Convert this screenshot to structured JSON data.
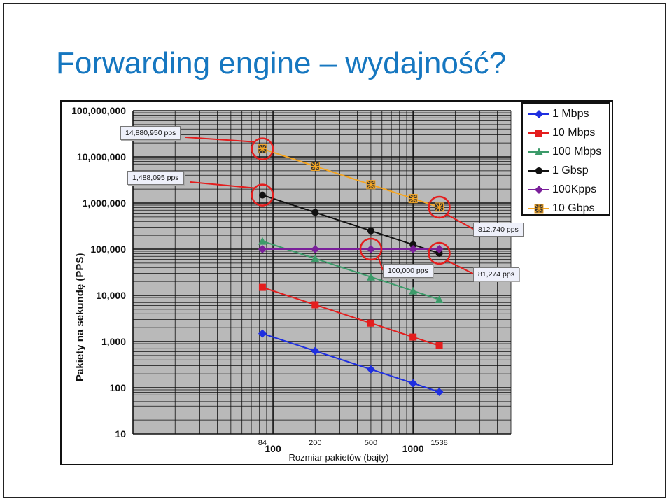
{
  "slide": {
    "title": "Forwarding engine – wydajność?"
  },
  "chart_data": {
    "type": "line",
    "xlabel": "Rozmiar pakietów (bajty)",
    "ylabel": "Pakiety na sekundę (PPS)",
    "x_scale": "log",
    "y_scale": "log",
    "xlim": [
      10,
      5000
    ],
    "ylim": [
      10,
      100000000
    ],
    "y_ticks": [
      10,
      100,
      1000,
      10000,
      100000,
      1000000,
      10000000,
      100000000
    ],
    "y_tick_labels": [
      "10",
      "100",
      "1,000",
      "10,000",
      "100,000",
      "1,000,000",
      "10,000,000",
      "100,000,000"
    ],
    "x_ticks": [
      100,
      1000
    ],
    "x_tick_labels": [
      "100",
      "1000"
    ],
    "x_packet_sizes": [
      84,
      200,
      500,
      1000,
      1538
    ],
    "x_packet_labels": [
      "84",
      "200",
      "500",
      "",
      "1538"
    ],
    "grid": true,
    "legend_position": "top-right",
    "series": [
      {
        "name": "1 Mbps",
        "color": "#1f2fe0",
        "marker": "diamond",
        "x": [
          84,
          200,
          500,
          1000,
          1538
        ],
        "y": [
          1488,
          625,
          250,
          125,
          81
        ]
      },
      {
        "name": "10 Mbps",
        "color": "#e41e1e",
        "marker": "square",
        "x": [
          84,
          200,
          500,
          1000,
          1538
        ],
        "y": [
          14880,
          6250,
          2500,
          1250,
          813
        ]
      },
      {
        "name": "100 Mbps",
        "color": "#3c9b6a",
        "marker": "triangle",
        "x": [
          84,
          200,
          500,
          1000,
          1538
        ],
        "y": [
          148810,
          62500,
          25000,
          12500,
          8127
        ]
      },
      {
        "name": "1 Gbsp",
        "color": "#111111",
        "marker": "circle",
        "x": [
          84,
          200,
          500,
          1000,
          1538
        ],
        "y": [
          1488095,
          625000,
          250000,
          125000,
          81274
        ]
      },
      {
        "name": "100Kpps",
        "color": "#7a1f9a",
        "marker": "diamond",
        "x": [
          84,
          200,
          500,
          1000,
          1538
        ],
        "y": [
          100000,
          100000,
          100000,
          100000,
          100000
        ]
      },
      {
        "name": "10 Gbps",
        "color": "#f5a623",
        "marker": "star-square",
        "x": [
          84,
          200,
          500,
          1000,
          1538
        ],
        "y": [
          14880950,
          6250000,
          2500000,
          1250000,
          812740
        ]
      }
    ],
    "annotations": [
      {
        "text": "14,880,950 pps",
        "target": [
          84,
          14880950
        ]
      },
      {
        "text": "1,488,095 pps",
        "target": [
          84,
          1488095
        ]
      },
      {
        "text": "812,740 pps",
        "target": [
          1538,
          812740
        ]
      },
      {
        "text": "100,000 pps",
        "target": [
          500,
          100000
        ]
      },
      {
        "text": "81,274 pps",
        "target": [
          1538,
          81274
        ]
      }
    ]
  }
}
